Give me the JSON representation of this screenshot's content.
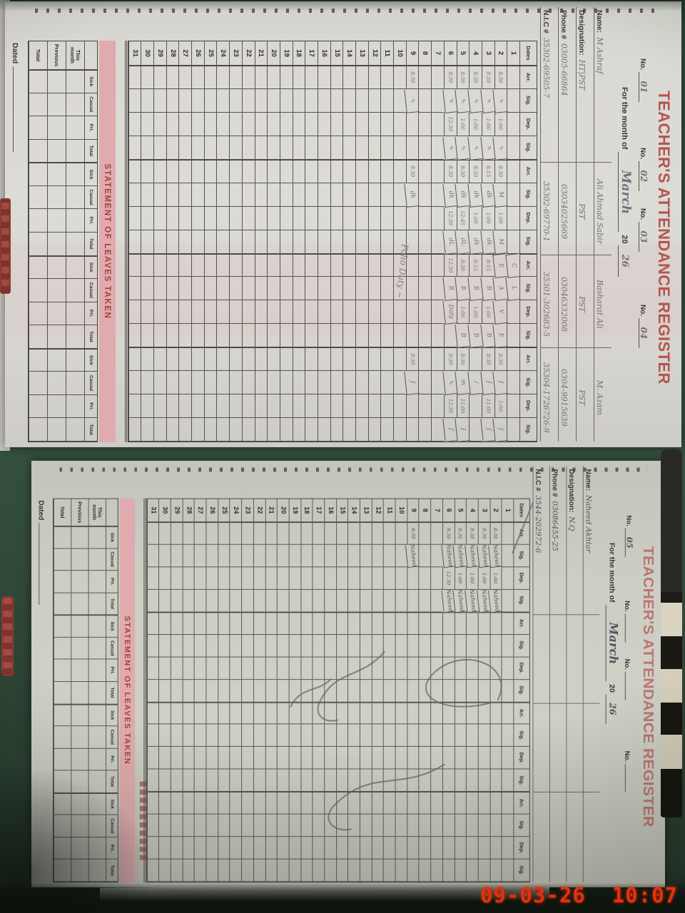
{
  "photo": {
    "timestamp": "09-03-26  10:07",
    "timestamp_color": "#e5300f",
    "background_color": "#2e4d3b"
  },
  "register": {
    "title": "TEACHER'S ATTENDANCE REGISTER",
    "no_label": "No.",
    "month_label": "For the month of",
    "year_prefix": "20",
    "info_labels": {
      "name": "Name:",
      "designation": "Designation:",
      "phone": "Phone #",
      "nic": "N.I.C #"
    },
    "dates_label": "Dates",
    "attendance_cols": [
      "Arr.",
      "Sig.",
      "Dep.",
      "Sig."
    ],
    "teacher_columns": 4,
    "days": 31,
    "statement_title": "STATEMENT OF LEAVES TAKEN",
    "statement_cols": [
      "Sick",
      "Casual",
      "Pri.",
      "Total"
    ],
    "statement_rows": [
      "This month",
      "Previous",
      "Total"
    ],
    "dated_label": "Dated",
    "accent_red": "#b5544f",
    "banner_pink": "#dfabae",
    "paper_color": "#dcdad3"
  },
  "pages": [
    {
      "id": "page1",
      "month": "March",
      "year": "26",
      "nos": [
        "01",
        "02",
        "03",
        "04"
      ],
      "teachers": [
        {
          "name": "M Ashraf",
          "designation": "HT|PST",
          "phone": "03005-66864",
          "nic": "35302-69505-7"
        },
        {
          "name": "Ali Ahmad Sabir",
          "designation": "PST",
          "phone": "03034025669",
          "nic": "35302-69770-1"
        },
        {
          "name": "Basharat Ali",
          "designation": "PST",
          "phone": "03046332008",
          "nic": "35301-302683-5"
        },
        {
          "name": "M. Azam",
          "designation": "PST",
          "phone": "0304-9915639",
          "nic": "35304-1726726-9"
        }
      ],
      "entries": {
        "1": [
          "",
          "",
          "",
          "",
          "",
          "",
          "",
          "",
          "C",
          "L",
          "",
          "",
          "",
          "",
          "",
          ""
        ],
        "2": [
          "8:30",
          "∿",
          "1:00",
          "∿",
          "8:30",
          "M",
          "1:00",
          "M",
          "E",
          "A",
          "V",
          "E",
          "8:30",
          "ʄ",
          "1:00",
          "ʄ"
        ],
        "3": [
          "8:30",
          "∿",
          "1:00",
          "∿",
          "8:15",
          "dk",
          "1:00",
          "dk",
          "8:15",
          "B",
          "1:00",
          "B",
          "8:30",
          "ʄ",
          "11:00",
          "ʄ"
        ],
        "4": [
          "8:30",
          "∿",
          "1:00",
          "∿",
          "8:30",
          "dk",
          "1:00",
          "dk",
          "8:15",
          "B",
          "1:00",
          "B",
          "",
          "∕",
          "",
          ""
        ],
        "5": [
          "8:30",
          "∿",
          "1:00",
          "∿",
          "8:30",
          "dk",
          "12:45",
          "dL",
          "8:30",
          "B",
          "1:00",
          "B",
          "8:30",
          "m",
          "11:00",
          "ʄ"
        ],
        "6": [
          "8:30",
          "∿",
          "12:30",
          "∿",
          "8:30",
          "dk",
          "12:30",
          "dL",
          "12:30",
          "R",
          "Duty",
          "",
          "9:30",
          "∿",
          "12:30",
          "ʄ"
        ],
        "9": [
          "8:30",
          "∿",
          "",
          "",
          "8:30",
          "dk",
          "",
          "",
          "",
          "",
          "",
          "",
          "8:30",
          "ʄ",
          "",
          ""
        ]
      },
      "note": "Polio Duty ~"
    },
    {
      "id": "page2",
      "month": "March",
      "year": "26",
      "nos": [
        "05",
        "",
        "",
        ""
      ],
      "teachers": [
        {
          "name": "Naheed Akhtar",
          "designation": "N.Q",
          "phone": "03086455-25",
          "nic": "3544-202972-6"
        },
        {
          "name": "",
          "designation": "",
          "phone": "",
          "nic": ""
        },
        {
          "name": "",
          "designation": "",
          "phone": "",
          "nic": ""
        },
        {
          "name": "",
          "designation": "",
          "phone": "",
          "nic": ""
        }
      ],
      "entries": {
        "2": [
          "8:30",
          "Naheed",
          "1:00",
          "Naheed",
          "",
          "",
          "",
          "",
          "",
          "",
          "",
          "",
          "",
          "",
          "",
          ""
        ],
        "3": [
          "8:30",
          "Naheed",
          "1:00",
          "Naheed",
          "",
          "",
          "",
          "",
          "",
          "",
          "",
          "",
          "",
          "",
          "",
          ""
        ],
        "4": [
          "8:30",
          "Naheed",
          "1:00",
          "Naheed",
          "",
          "",
          "",
          "",
          "",
          "",
          "",
          "",
          "",
          "",
          "",
          ""
        ],
        "5": [
          "8:30",
          "Naheed",
          "1:00",
          "Naheed",
          "",
          "",
          "",
          "",
          "",
          "",
          "",
          "",
          "",
          "",
          "",
          ""
        ],
        "6": [
          "8:30",
          "Naheed",
          "12:30",
          "Naheed",
          "",
          "",
          "",
          "",
          "",
          "",
          "",
          "",
          "",
          "",
          "",
          ""
        ],
        "9": [
          "8:30",
          "Naheed",
          "",
          "",
          "",
          "",
          "",
          "",
          "",
          "",
          "",
          "",
          "",
          "",
          "",
          ""
        ]
      },
      "note": ""
    }
  ]
}
